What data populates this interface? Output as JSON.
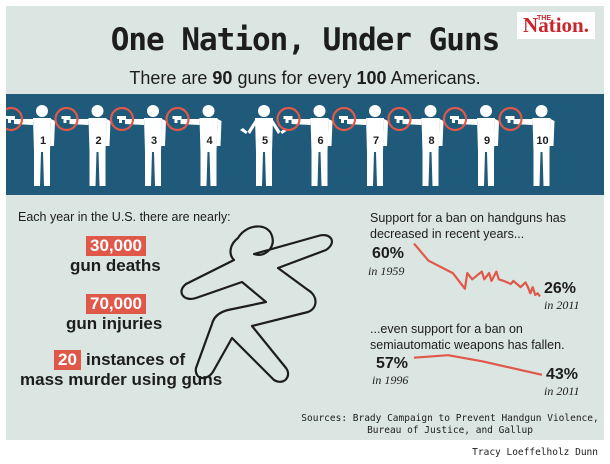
{
  "header": {
    "title": "One Nation, Under Guns",
    "subtitle_pre": "There are ",
    "subtitle_num1": "90",
    "subtitle_mid": " guns for every ",
    "subtitle_num2": "100",
    "subtitle_post": " Americans.",
    "logo_the": "THE",
    "logo_text": "Nation."
  },
  "figures": {
    "labels": [
      "1",
      "2",
      "3",
      "4",
      "5",
      "6",
      "7",
      "8",
      "9",
      "10"
    ],
    "armed": [
      true,
      true,
      true,
      true,
      false,
      true,
      true,
      true,
      true,
      true
    ],
    "colors": {
      "band": "#1f5a7a",
      "figure": "#ffffff",
      "ring": "#e0584a"
    }
  },
  "stats": {
    "intro": "Each year in the U.S. there are nearly:",
    "items": [
      {
        "number": "30,000",
        "label": "gun deaths"
      },
      {
        "number": "70,000",
        "label": "gun injuries"
      },
      {
        "number": "20",
        "label": "instances of",
        "label2": "mass murder using guns"
      }
    ]
  },
  "chart_data": [
    {
      "type": "line",
      "title": "Support for a ban on handguns has decreased in recent years...",
      "title_line1": "Support for a ban on handguns has",
      "title_line2": "decreased in recent years...",
      "start": {
        "value": "60%",
        "year": "in 1959"
      },
      "end": {
        "value": "26%",
        "year": "in 2011"
      },
      "x": [
        1959,
        1965,
        1975,
        1980,
        1981,
        1983,
        1987,
        1988,
        1990,
        1991,
        1993,
        1994,
        1996,
        1999,
        2000,
        2003,
        2005,
        2006,
        2007,
        2008,
        2009,
        2010,
        2011
      ],
      "y": [
        60,
        49,
        41,
        31,
        41,
        37,
        42,
        37,
        41,
        36,
        42,
        37,
        36,
        34,
        36,
        32,
        35,
        32,
        28,
        32,
        27,
        28,
        26
      ],
      "color": "#e0584a"
    },
    {
      "type": "line",
      "title": "...even support for a ban on semiautomatic weapons has fallen.",
      "title_line1": "...even support for a ban on",
      "title_line2": "semiautomatic weapons has fallen.",
      "start": {
        "value": "57%",
        "year": "in 1996"
      },
      "end": {
        "value": "43%",
        "year": "in 2011"
      },
      "x": [
        1996,
        2000,
        2004,
        2011
      ],
      "y": [
        57,
        59,
        54,
        43
      ],
      "color": "#e0584a"
    }
  ],
  "footer": {
    "sources_line1": "Sources: Brady Campaign to Prevent Handgun Violence,",
    "sources_line2": "Bureau of Justice, and Gallup",
    "credit": "Tracy Loeffelholz Dunn"
  }
}
